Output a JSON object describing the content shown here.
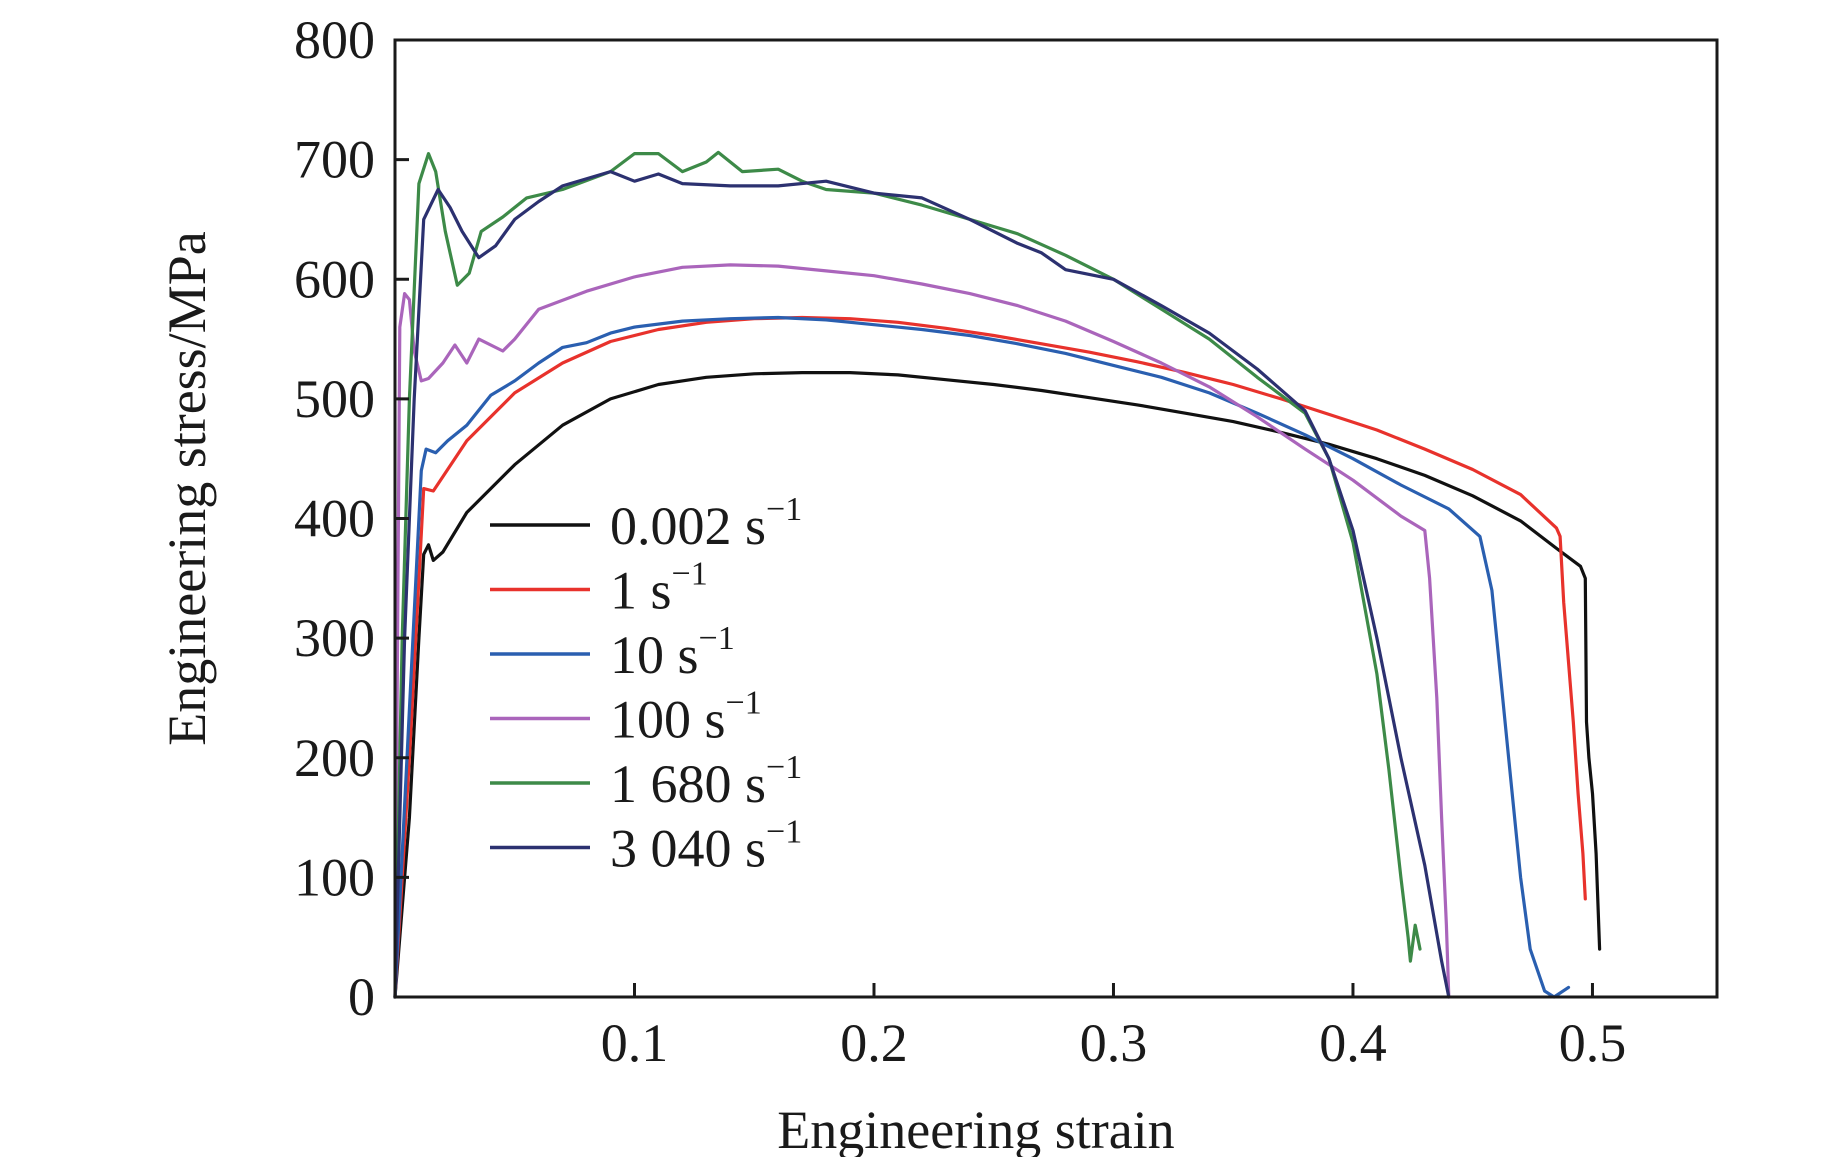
{
  "chart_data": {
    "type": "line",
    "title": "",
    "xlabel": "Engineering strain",
    "ylabel": "Engineering stress/MPa",
    "xlim": [
      0,
      0.552
    ],
    "ylim": [
      0,
      800
    ],
    "xticks": [
      {
        "value": 0.1,
        "label": "0.1"
      },
      {
        "value": 0.2,
        "label": "0.2"
      },
      {
        "value": 0.3,
        "label": "0.3"
      },
      {
        "value": 0.4,
        "label": "0.4"
      },
      {
        "value": 0.5,
        "label": "0.5"
      }
    ],
    "yticks": [
      {
        "value": 0,
        "label": "0"
      },
      {
        "value": 100,
        "label": "100"
      },
      {
        "value": 200,
        "label": "200"
      },
      {
        "value": 300,
        "label": "300"
      },
      {
        "value": 400,
        "label": "400"
      },
      {
        "value": 500,
        "label": "500"
      },
      {
        "value": 600,
        "label": "600"
      },
      {
        "value": 700,
        "label": "700"
      },
      {
        "value": 800,
        "label": "800"
      }
    ],
    "grid": false,
    "legend_position": "center-left",
    "series": [
      {
        "name": "0.002 s",
        "name_superscript": "−1",
        "color": "#111111",
        "points": [
          [
            0,
            0
          ],
          [
            0.006,
            150
          ],
          [
            0.01,
            300
          ],
          [
            0.012,
            370
          ],
          [
            0.014,
            378
          ],
          [
            0.016,
            365
          ],
          [
            0.02,
            372
          ],
          [
            0.03,
            405
          ],
          [
            0.05,
            445
          ],
          [
            0.07,
            478
          ],
          [
            0.09,
            500
          ],
          [
            0.11,
            512
          ],
          [
            0.13,
            518
          ],
          [
            0.15,
            521
          ],
          [
            0.17,
            522
          ],
          [
            0.19,
            522
          ],
          [
            0.21,
            520
          ],
          [
            0.23,
            516
          ],
          [
            0.25,
            512
          ],
          [
            0.27,
            507
          ],
          [
            0.29,
            501
          ],
          [
            0.31,
            495
          ],
          [
            0.33,
            488
          ],
          [
            0.35,
            481
          ],
          [
            0.37,
            472
          ],
          [
            0.39,
            462
          ],
          [
            0.41,
            450
          ],
          [
            0.43,
            436
          ],
          [
            0.45,
            419
          ],
          [
            0.47,
            398
          ],
          [
            0.485,
            375
          ],
          [
            0.495,
            360
          ],
          [
            0.497,
            350
          ],
          [
            0.4975,
            230
          ],
          [
            0.4985,
            200
          ],
          [
            0.5,
            170
          ],
          [
            0.5015,
            120
          ],
          [
            0.503,
            40
          ]
        ]
      },
      {
        "name": "1 s",
        "name_superscript": "−1",
        "color": "#e8322c",
        "points": [
          [
            0,
            0
          ],
          [
            0.006,
            200
          ],
          [
            0.012,
            425
          ],
          [
            0.016,
            423
          ],
          [
            0.02,
            435
          ],
          [
            0.03,
            465
          ],
          [
            0.05,
            505
          ],
          [
            0.07,
            530
          ],
          [
            0.09,
            548
          ],
          [
            0.11,
            558
          ],
          [
            0.13,
            564
          ],
          [
            0.15,
            567
          ],
          [
            0.17,
            568
          ],
          [
            0.19,
            567
          ],
          [
            0.21,
            564
          ],
          [
            0.23,
            559
          ],
          [
            0.25,
            553
          ],
          [
            0.27,
            546
          ],
          [
            0.29,
            539
          ],
          [
            0.31,
            531
          ],
          [
            0.33,
            522
          ],
          [
            0.35,
            512
          ],
          [
            0.37,
            500
          ],
          [
            0.39,
            487
          ],
          [
            0.41,
            474
          ],
          [
            0.43,
            458
          ],
          [
            0.45,
            441
          ],
          [
            0.47,
            420
          ],
          [
            0.485,
            392
          ],
          [
            0.4865,
            385
          ],
          [
            0.488,
            330
          ],
          [
            0.49,
            280
          ],
          [
            0.492,
            230
          ],
          [
            0.494,
            170
          ],
          [
            0.496,
            120
          ],
          [
            0.497,
            82
          ]
        ]
      },
      {
        "name": "10 s",
        "name_superscript": "−1",
        "color": "#2a5fb0",
        "points": [
          [
            0,
            0
          ],
          [
            0.005,
            200
          ],
          [
            0.011,
            440
          ],
          [
            0.013,
            458
          ],
          [
            0.017,
            455
          ],
          [
            0.022,
            465
          ],
          [
            0.03,
            478
          ],
          [
            0.04,
            503
          ],
          [
            0.05,
            515
          ],
          [
            0.06,
            530
          ],
          [
            0.07,
            543
          ],
          [
            0.08,
            547
          ],
          [
            0.09,
            555
          ],
          [
            0.1,
            560
          ],
          [
            0.12,
            565
          ],
          [
            0.14,
            567
          ],
          [
            0.16,
            568
          ],
          [
            0.18,
            566
          ],
          [
            0.2,
            562
          ],
          [
            0.22,
            558
          ],
          [
            0.24,
            553
          ],
          [
            0.26,
            546
          ],
          [
            0.28,
            538
          ],
          [
            0.3,
            528
          ],
          [
            0.32,
            518
          ],
          [
            0.34,
            505
          ],
          [
            0.36,
            488
          ],
          [
            0.38,
            470
          ],
          [
            0.4,
            450
          ],
          [
            0.42,
            428
          ],
          [
            0.44,
            408
          ],
          [
            0.453,
            385
          ],
          [
            0.458,
            340
          ],
          [
            0.462,
            260
          ],
          [
            0.466,
            180
          ],
          [
            0.47,
            100
          ],
          [
            0.474,
            40
          ],
          [
            0.48,
            5
          ],
          [
            0.484,
            0
          ],
          [
            0.49,
            8
          ]
        ]
      },
      {
        "name": "100 s",
        "name_superscript": "−1",
        "color": "#aa65bb",
        "points": [
          [
            0,
            0
          ],
          [
            0.002,
            560
          ],
          [
            0.004,
            588
          ],
          [
            0.006,
            583
          ],
          [
            0.008,
            540
          ],
          [
            0.011,
            515
          ],
          [
            0.014,
            517
          ],
          [
            0.02,
            530
          ],
          [
            0.025,
            545
          ],
          [
            0.03,
            530
          ],
          [
            0.035,
            550
          ],
          [
            0.045,
            540
          ],
          [
            0.05,
            550
          ],
          [
            0.06,
            575
          ],
          [
            0.08,
            590
          ],
          [
            0.1,
            602
          ],
          [
            0.12,
            610
          ],
          [
            0.14,
            612
          ],
          [
            0.16,
            611
          ],
          [
            0.18,
            607
          ],
          [
            0.2,
            603
          ],
          [
            0.22,
            596
          ],
          [
            0.24,
            588
          ],
          [
            0.26,
            578
          ],
          [
            0.28,
            565
          ],
          [
            0.3,
            548
          ],
          [
            0.32,
            530
          ],
          [
            0.34,
            510
          ],
          [
            0.36,
            485
          ],
          [
            0.38,
            458
          ],
          [
            0.4,
            432
          ],
          [
            0.42,
            402
          ],
          [
            0.43,
            390
          ],
          [
            0.432,
            350
          ],
          [
            0.435,
            250
          ],
          [
            0.437,
            150
          ],
          [
            0.439,
            60
          ],
          [
            0.44,
            0
          ]
        ]
      },
      {
        "name": "1 680 s",
        "name_superscript": "−1",
        "color": "#3d8a48",
        "points": [
          [
            0,
            0
          ],
          [
            0.003,
            300
          ],
          [
            0.006,
            500
          ],
          [
            0.01,
            680
          ],
          [
            0.014,
            705
          ],
          [
            0.017,
            690
          ],
          [
            0.021,
            640
          ],
          [
            0.026,
            595
          ],
          [
            0.031,
            605
          ],
          [
            0.036,
            640
          ],
          [
            0.045,
            652
          ],
          [
            0.055,
            668
          ],
          [
            0.07,
            675
          ],
          [
            0.09,
            690
          ],
          [
            0.1,
            705
          ],
          [
            0.11,
            705
          ],
          [
            0.12,
            690
          ],
          [
            0.13,
            698
          ],
          [
            0.135,
            706
          ],
          [
            0.145,
            690
          ],
          [
            0.16,
            692
          ],
          [
            0.17,
            682
          ],
          [
            0.18,
            675
          ],
          [
            0.2,
            672
          ],
          [
            0.22,
            662
          ],
          [
            0.24,
            650
          ],
          [
            0.26,
            638
          ],
          [
            0.28,
            620
          ],
          [
            0.3,
            600
          ],
          [
            0.32,
            575
          ],
          [
            0.34,
            550
          ],
          [
            0.36,
            518
          ],
          [
            0.38,
            488
          ],
          [
            0.39,
            450
          ],
          [
            0.4,
            380
          ],
          [
            0.41,
            270
          ],
          [
            0.415,
            190
          ],
          [
            0.42,
            100
          ],
          [
            0.423,
            50
          ],
          [
            0.424,
            30
          ],
          [
            0.426,
            60
          ],
          [
            0.428,
            40
          ]
        ]
      },
      {
        "name": "3 040 s",
        "name_superscript": "−1",
        "color": "#2c3170",
        "points": [
          [
            0,
            0
          ],
          [
            0.004,
            300
          ],
          [
            0.008,
            500
          ],
          [
            0.012,
            650
          ],
          [
            0.018,
            675
          ],
          [
            0.023,
            660
          ],
          [
            0.028,
            640
          ],
          [
            0.035,
            618
          ],
          [
            0.042,
            628
          ],
          [
            0.05,
            650
          ],
          [
            0.06,
            665
          ],
          [
            0.07,
            678
          ],
          [
            0.09,
            690
          ],
          [
            0.1,
            682
          ],
          [
            0.11,
            688
          ],
          [
            0.12,
            680
          ],
          [
            0.14,
            678
          ],
          [
            0.16,
            678
          ],
          [
            0.18,
            682
          ],
          [
            0.2,
            672
          ],
          [
            0.22,
            668
          ],
          [
            0.24,
            650
          ],
          [
            0.26,
            630
          ],
          [
            0.27,
            622
          ],
          [
            0.28,
            608
          ],
          [
            0.3,
            600
          ],
          [
            0.32,
            578
          ],
          [
            0.34,
            555
          ],
          [
            0.36,
            525
          ],
          [
            0.38,
            490
          ],
          [
            0.39,
            450
          ],
          [
            0.4,
            390
          ],
          [
            0.41,
            300
          ],
          [
            0.42,
            200
          ],
          [
            0.43,
            110
          ],
          [
            0.437,
            30
          ],
          [
            0.44,
            0
          ]
        ]
      }
    ]
  }
}
